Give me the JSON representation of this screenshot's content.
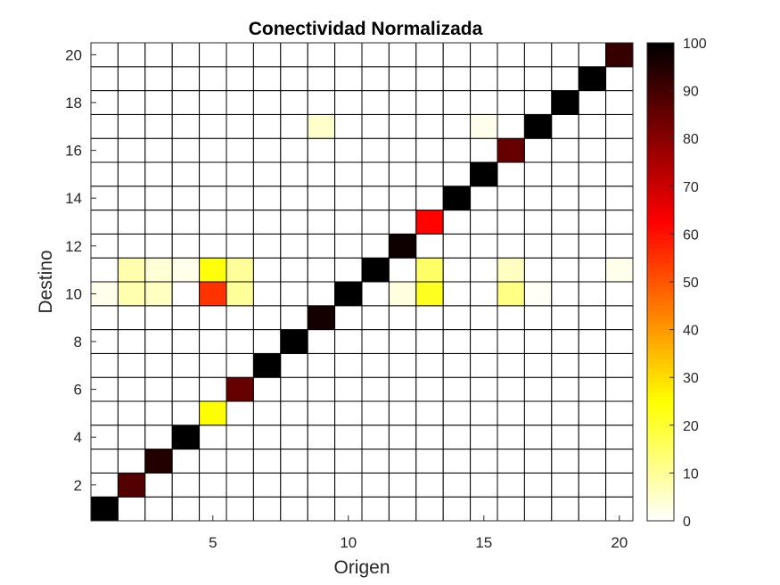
{
  "chart_data": {
    "type": "heatmap",
    "title": "Conectividad Normalizada",
    "xlabel": "Origen",
    "ylabel": "Destino",
    "x_range": [
      1,
      20
    ],
    "y_range": [
      1,
      20
    ],
    "x_ticks": [
      5,
      10,
      15,
      20
    ],
    "y_ticks": [
      2,
      4,
      6,
      8,
      10,
      12,
      14,
      16,
      18,
      20
    ],
    "colormap": "hot-reversed",
    "colorbar": {
      "min": 0,
      "max": 100,
      "ticks": [
        0,
        10,
        20,
        30,
        40,
        50,
        60,
        70,
        80,
        90,
        100
      ]
    },
    "grid": true,
    "default_value": 0,
    "cells": [
      {
        "x": 1,
        "y": 1,
        "v": 100
      },
      {
        "x": 2,
        "y": 2,
        "v": 88
      },
      {
        "x": 3,
        "y": 3,
        "v": 95
      },
      {
        "x": 4,
        "y": 4,
        "v": 100
      },
      {
        "x": 5,
        "y": 5,
        "v": 25
      },
      {
        "x": 6,
        "y": 6,
        "v": 85
      },
      {
        "x": 7,
        "y": 7,
        "v": 100
      },
      {
        "x": 8,
        "y": 8,
        "v": 100
      },
      {
        "x": 9,
        "y": 9,
        "v": 97
      },
      {
        "x": 10,
        "y": 10,
        "v": 100
      },
      {
        "x": 11,
        "y": 11,
        "v": 100
      },
      {
        "x": 12,
        "y": 12,
        "v": 98
      },
      {
        "x": 13,
        "y": 13,
        "v": 62
      },
      {
        "x": 14,
        "y": 14,
        "v": 100
      },
      {
        "x": 15,
        "y": 15,
        "v": 100
      },
      {
        "x": 16,
        "y": 16,
        "v": 85
      },
      {
        "x": 17,
        "y": 17,
        "v": 100
      },
      {
        "x": 18,
        "y": 18,
        "v": 100
      },
      {
        "x": 19,
        "y": 19,
        "v": 100
      },
      {
        "x": 20,
        "y": 20,
        "v": 92
      },
      {
        "x": 1,
        "y": 10,
        "v": 2
      },
      {
        "x": 2,
        "y": 10,
        "v": 8
      },
      {
        "x": 3,
        "y": 10,
        "v": 6
      },
      {
        "x": 5,
        "y": 10,
        "v": 55
      },
      {
        "x": 6,
        "y": 10,
        "v": 10
      },
      {
        "x": 12,
        "y": 10,
        "v": 3
      },
      {
        "x": 13,
        "y": 10,
        "v": 22
      },
      {
        "x": 16,
        "y": 10,
        "v": 12
      },
      {
        "x": 17,
        "y": 10,
        "v": 1
      },
      {
        "x": 2,
        "y": 11,
        "v": 8
      },
      {
        "x": 3,
        "y": 11,
        "v": 4
      },
      {
        "x": 4,
        "y": 11,
        "v": 2
      },
      {
        "x": 5,
        "y": 11,
        "v": 24
      },
      {
        "x": 6,
        "y": 11,
        "v": 10
      },
      {
        "x": 13,
        "y": 11,
        "v": 15
      },
      {
        "x": 16,
        "y": 11,
        "v": 6
      },
      {
        "x": 20,
        "y": 11,
        "v": 2
      },
      {
        "x": 9,
        "y": 17,
        "v": 5
      },
      {
        "x": 15,
        "y": 17,
        "v": 2
      }
    ]
  }
}
